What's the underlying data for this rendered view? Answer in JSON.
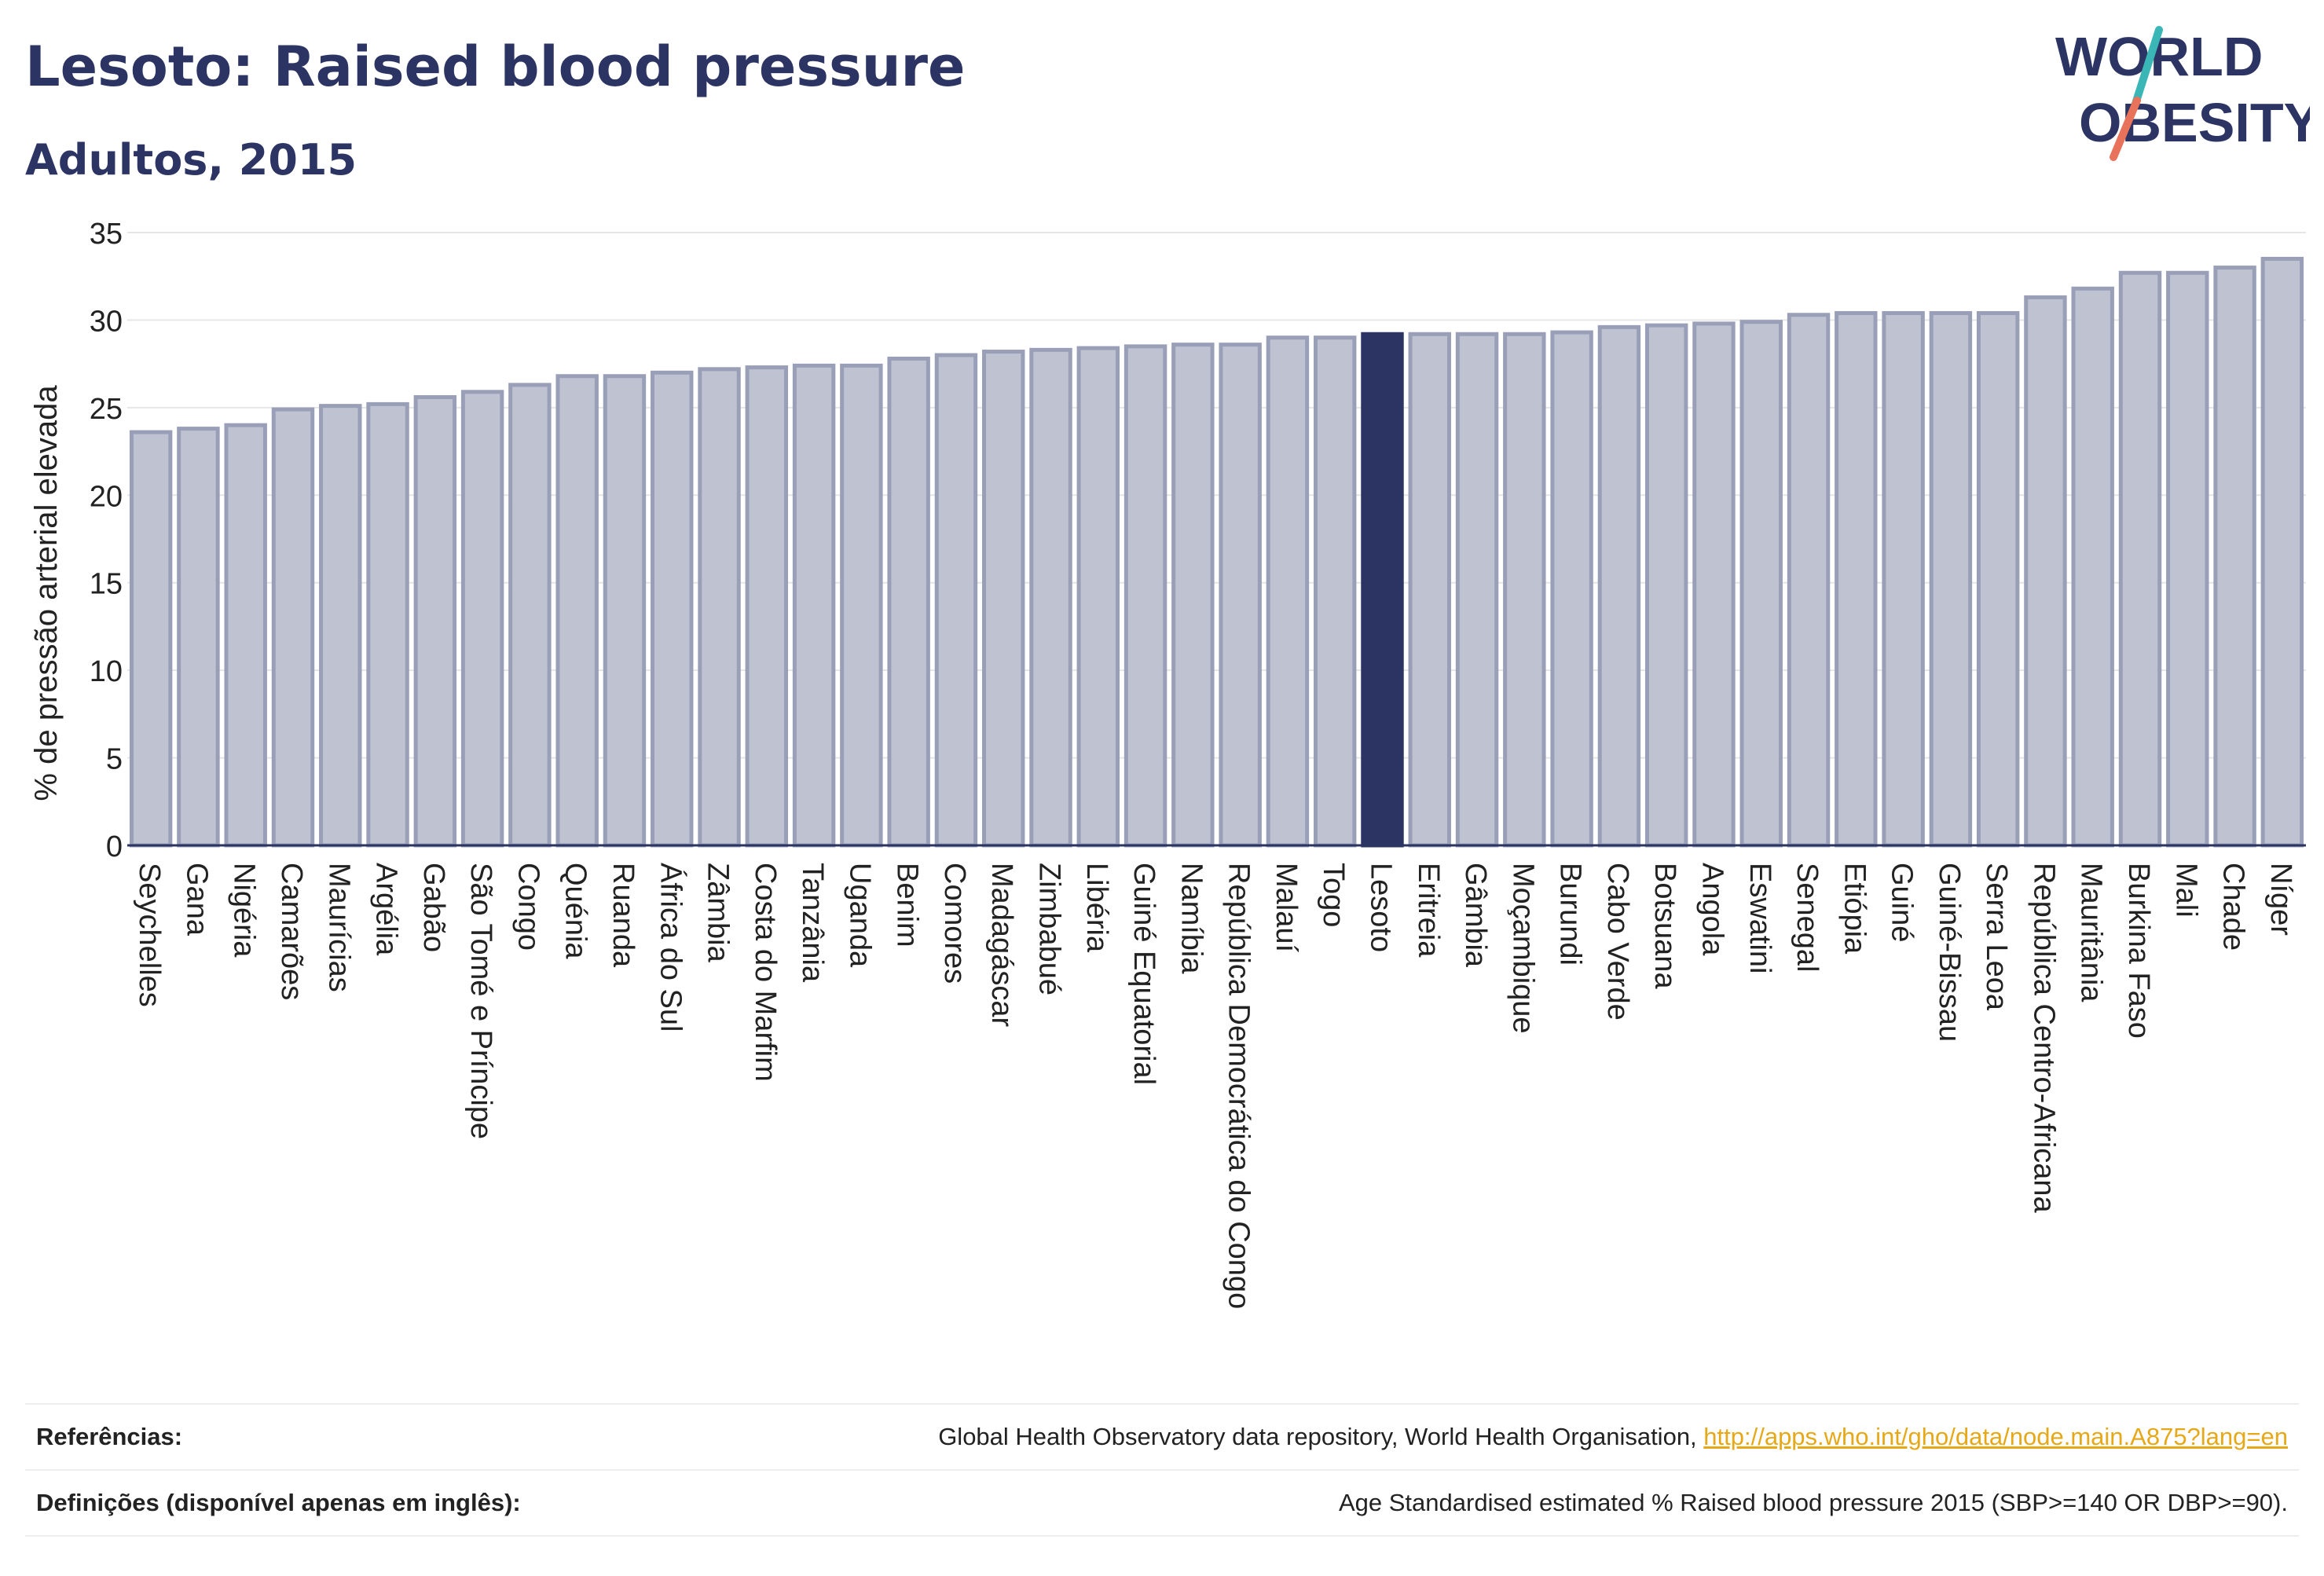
{
  "header": {
    "title": "Lesoto: Raised blood pressure",
    "subtitle": "Adultos, 2015"
  },
  "logo": {
    "line1": "WORLD",
    "line2": "OBESITY",
    "colors": {
      "text": "#2b3463",
      "slash_teal": "#3ab6b6",
      "slash_coral": "#e8735a"
    }
  },
  "chart_data": {
    "type": "bar",
    "ylabel": "% de pressão arterial elevada",
    "xlabel": "",
    "ylim": [
      0,
      35
    ],
    "yticks": [
      0,
      5,
      10,
      15,
      20,
      25,
      30,
      35
    ],
    "grid": true,
    "highlight": "Lesoto",
    "colors": {
      "bar": "#bfc2d1",
      "bar_border": "#9a9fb8",
      "highlight": "#2b3463",
      "grid": "#e6e6e6",
      "axis": "#2b3463"
    },
    "categories": [
      "Seychelles",
      "Gana",
      "Nigéria",
      "Camarões",
      "Maurícias",
      "Argélia",
      "Gabão",
      "São Tomé e Príncipe",
      "Congo",
      "Quénia",
      "Ruanda",
      "África do Sul",
      "Zâmbia",
      "Costa do Marfim",
      "Tanzânia",
      "Uganda",
      "Benim",
      "Comores",
      "Madagáscar",
      "Zimbabué",
      "Libéria",
      "Guiné Equatorial",
      "Namíbia",
      "República Democrática do Congo",
      "Malauí",
      "Togo",
      "Lesoto",
      "Eritreia",
      "Gâmbia",
      "Moçambique",
      "Burundi",
      "Cabo Verde",
      "Botsuana",
      "Angola",
      "Eswatini",
      "Senegal",
      "Etiópia",
      "Guiné",
      "Guiné-Bissau",
      "Serra Leoa",
      "República Centro-Africana",
      "Mauritânia",
      "Burkina Faso",
      "Mali",
      "Chade",
      "Níger"
    ],
    "values": [
      23.6,
      23.8,
      24.0,
      24.9,
      25.1,
      25.2,
      25.6,
      25.9,
      26.3,
      26.8,
      26.8,
      27.0,
      27.2,
      27.3,
      27.4,
      27.4,
      27.8,
      28.0,
      28.2,
      28.3,
      28.4,
      28.5,
      28.6,
      28.6,
      29.0,
      29.0,
      29.2,
      29.2,
      29.2,
      29.2,
      29.3,
      29.6,
      29.7,
      29.8,
      29.9,
      30.3,
      30.4,
      30.4,
      30.4,
      30.4,
      31.3,
      31.8,
      32.7,
      32.7,
      33.0,
      33.5
    ]
  },
  "footer": {
    "references_label": "Referências:",
    "references_text": "Global Health Observatory data repository, World Health Organisation, ",
    "references_link": "http://apps.who.int/gho/data/node.main.A875?lang=en",
    "definitions_label": "Definições (disponível apenas em inglês):",
    "definitions_text": "Age Standardised estimated % Raised blood pressure 2015 (SBP>=140 OR DBP>=90)."
  }
}
